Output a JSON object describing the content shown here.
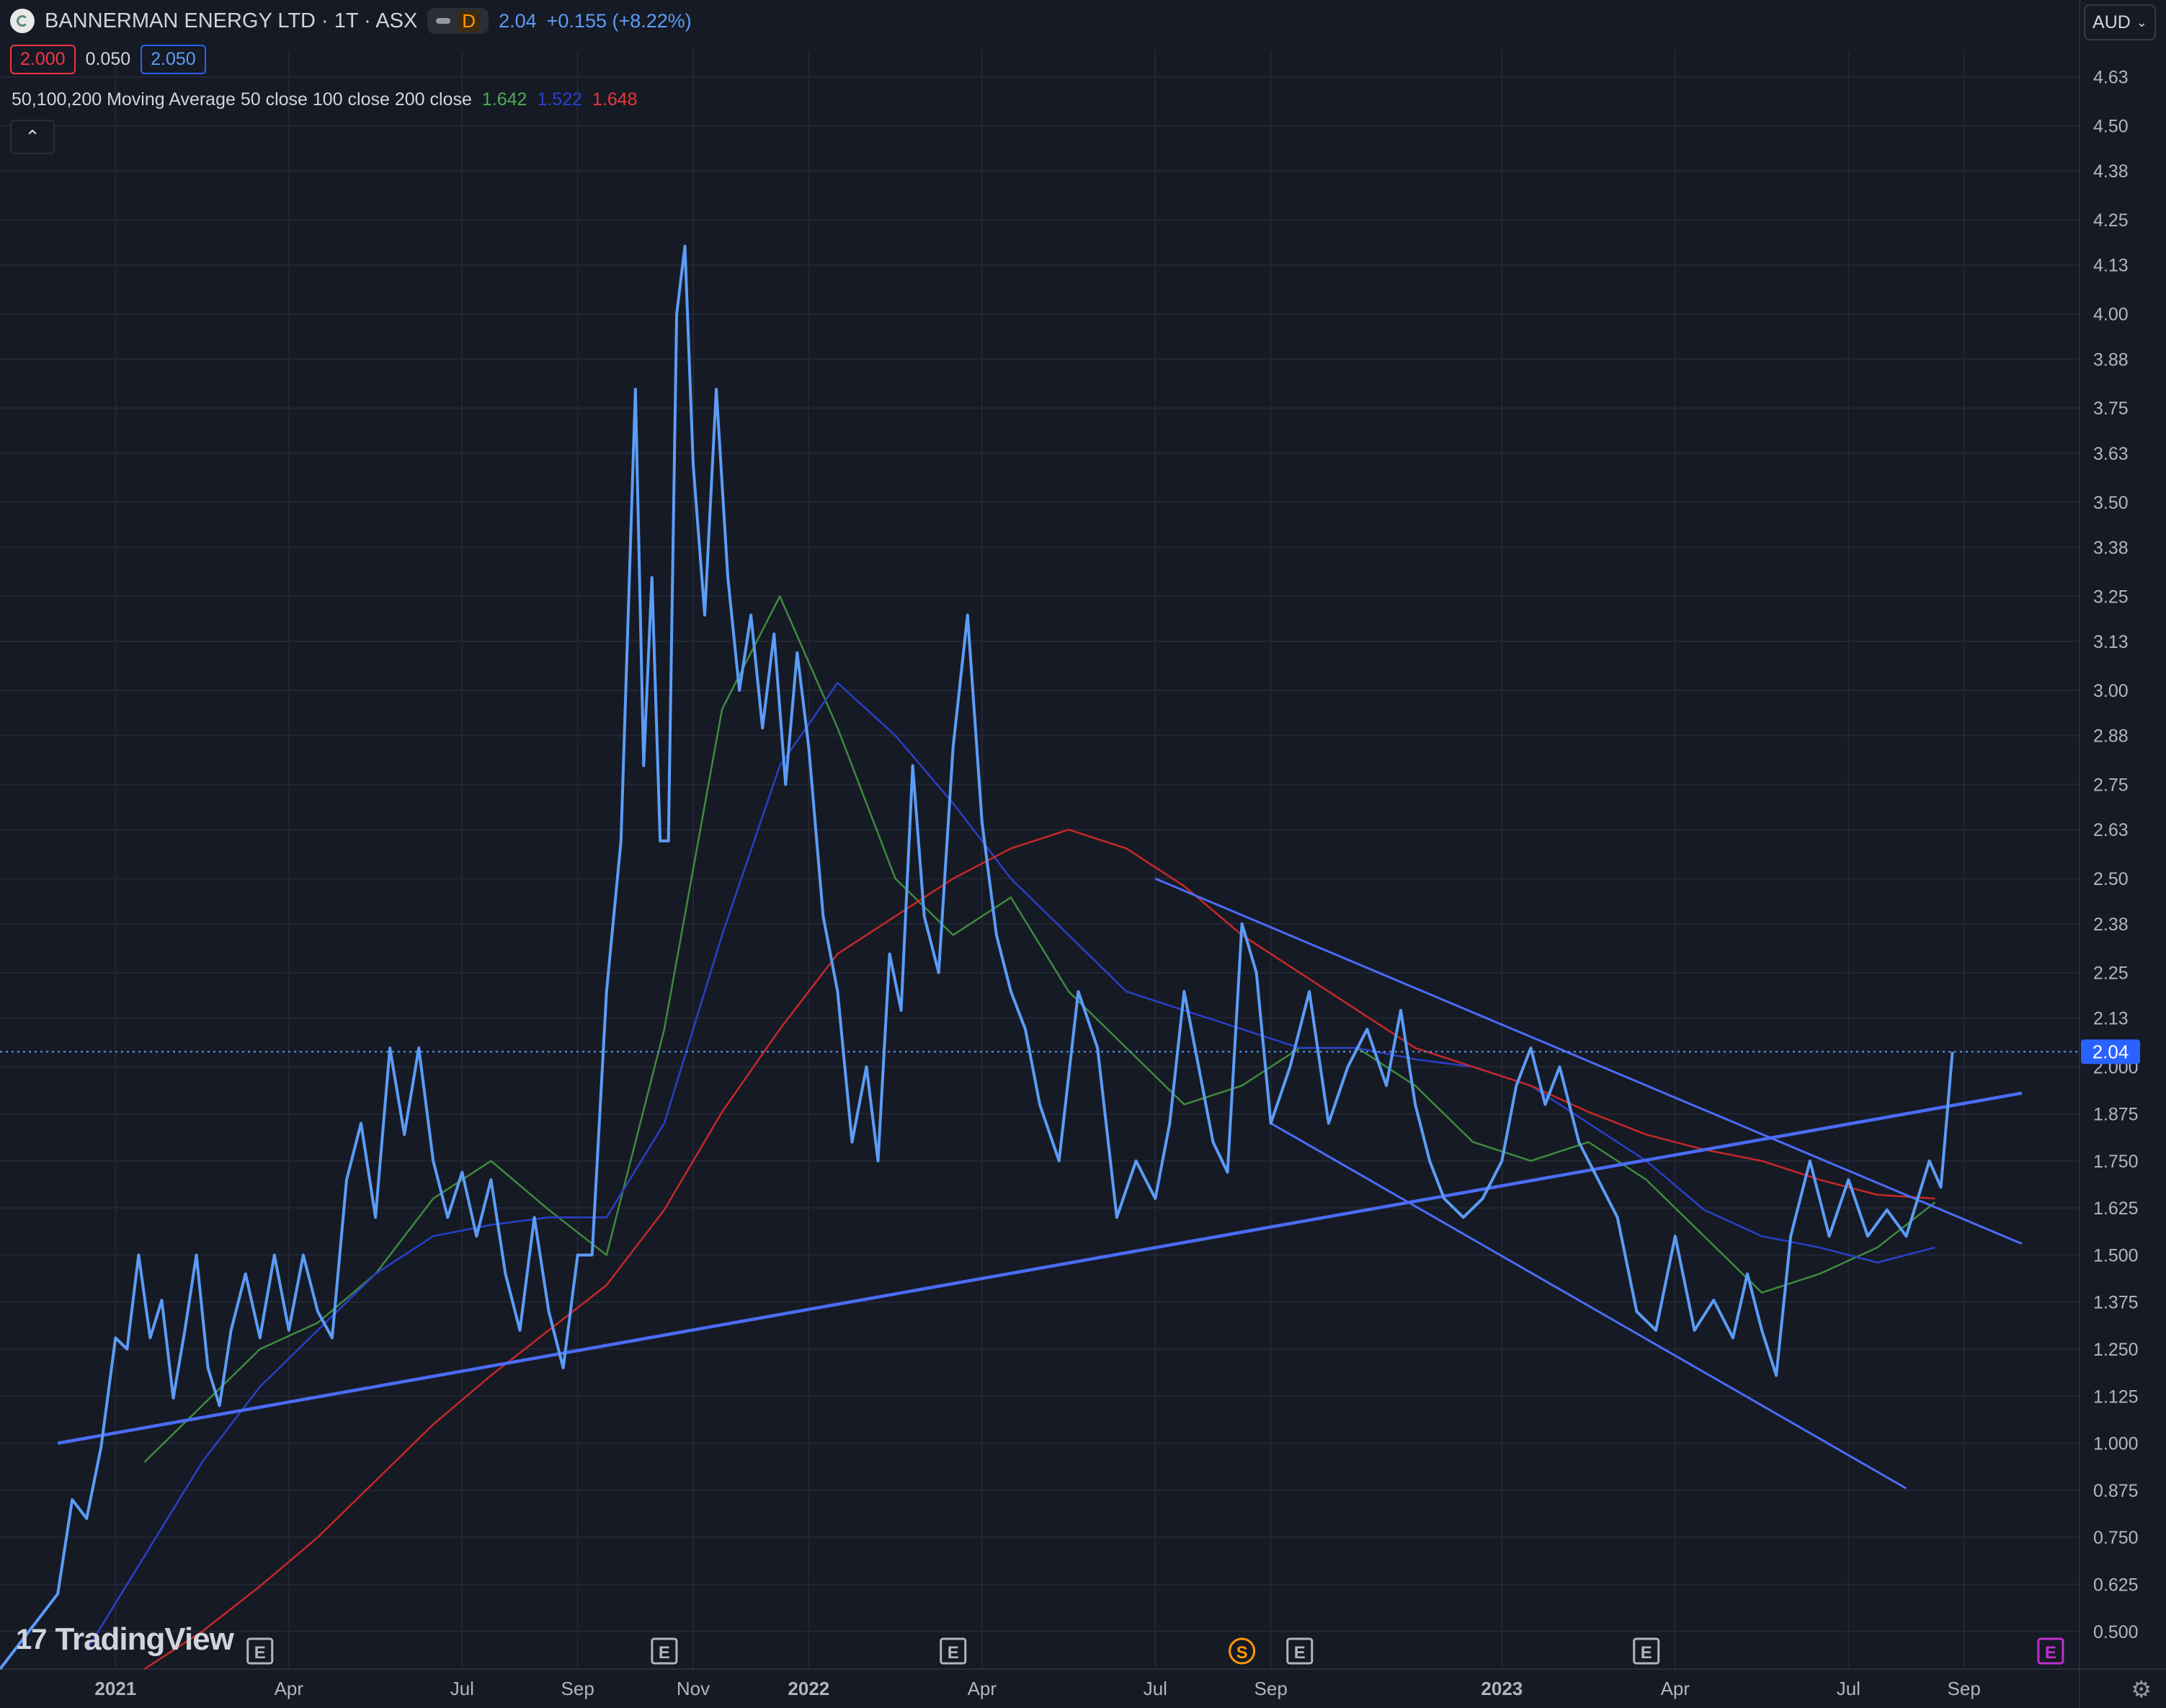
{
  "header": {
    "symbol": "BANNERMAN ENERGY LTD · 1T · ASX",
    "interval_badge": "D",
    "last_price": "2.04",
    "change": "+0.155 (+8.22%)"
  },
  "quote": {
    "bid": "2.000",
    "spread": "0.050",
    "ask": "2.050"
  },
  "ma_legend": {
    "label": "50,100,200 Moving Average 50 close 100 close 200 close",
    "ma50": "1.642",
    "ma100": "1.522",
    "ma200": "1.648"
  },
  "currency": "AUD",
  "brand": "TradingView",
  "colors": {
    "background": "#161a25",
    "grid": "#232733",
    "price_line": "#5b9cf6",
    "ma50": "#3d8b3d",
    "ma100": "#2940c9",
    "ma200": "#c62828",
    "trendline": "#4a6cf7",
    "axis_text": "#b2b5be",
    "current_price_bg": "#2962ff"
  },
  "chart_data": {
    "type": "line",
    "y_axis_ticks": [
      "4.63",
      "4.50",
      "4.38",
      "4.25",
      "4.13",
      "4.00",
      "3.88",
      "3.75",
      "3.63",
      "3.50",
      "3.38",
      "3.25",
      "3.13",
      "3.00",
      "2.88",
      "2.75",
      "2.63",
      "2.50",
      "2.38",
      "2.25",
      "2.13",
      "2.000",
      "1.875",
      "1.750",
      "1.625",
      "1.500",
      "1.375",
      "1.250",
      "1.125",
      "1.000",
      "0.875",
      "0.750",
      "0.625",
      "0.500"
    ],
    "x_axis_labels": [
      {
        "label": "2021",
        "bold": true,
        "date": "2021-01"
      },
      {
        "label": "Apr",
        "bold": false,
        "date": "2021-04"
      },
      {
        "label": "Jul",
        "bold": false,
        "date": "2021-07"
      },
      {
        "label": "Sep",
        "bold": false,
        "date": "2021-09"
      },
      {
        "label": "Nov",
        "bold": false,
        "date": "2021-11"
      },
      {
        "label": "2022",
        "bold": true,
        "date": "2022-01"
      },
      {
        "label": "Apr",
        "bold": false,
        "date": "2022-04"
      },
      {
        "label": "Jul",
        "bold": false,
        "date": "2022-07"
      },
      {
        "label": "Sep",
        "bold": false,
        "date": "2022-09"
      },
      {
        "label": "2023",
        "bold": true,
        "date": "2023-01"
      },
      {
        "label": "Apr",
        "bold": false,
        "date": "2023-04"
      },
      {
        "label": "Jul",
        "bold": false,
        "date": "2023-07"
      },
      {
        "label": "Sep",
        "bold": false,
        "date": "2023-09"
      }
    ],
    "ylim": [
      0.4,
      4.7
    ],
    "xlim": [
      "2020-11",
      "2023-11"
    ],
    "current_price": "2.04",
    "current_price_value": 2.04,
    "event_markers": [
      {
        "label": "E",
        "date": "2021-03",
        "color": "#b2b5be"
      },
      {
        "label": "E",
        "date": "2021-10",
        "color": "#b2b5be"
      },
      {
        "label": "E",
        "date": "2022-03",
        "color": "#b2b5be"
      },
      {
        "label": "S",
        "date": "2022-08",
        "color": "#ff9800"
      },
      {
        "label": "E",
        "date": "2022-09",
        "color": "#b2b5be"
      },
      {
        "label": "E",
        "date": "2023-03",
        "color": "#b2b5be"
      },
      {
        "label": "E",
        "date": "2023-10",
        "color": "#c030d0"
      }
    ],
    "series": [
      {
        "key": "price",
        "points": [
          [
            "2020-11",
            0.4
          ],
          [
            "2020-11",
            0.5
          ],
          [
            "2020-12",
            0.6
          ],
          [
            "2020-12",
            0.85
          ],
          [
            "2020-12",
            0.8
          ],
          [
            "2020-12",
            0.99
          ],
          [
            "2021-01",
            1.28
          ],
          [
            "2021-01",
            1.25
          ],
          [
            "2021-01",
            1.5
          ],
          [
            "2021-01",
            1.28
          ],
          [
            "2021-01",
            1.38
          ],
          [
            "2021-02",
            1.12
          ],
          [
            "2021-02",
            1.3
          ],
          [
            "2021-02",
            1.5
          ],
          [
            "2021-02",
            1.2
          ],
          [
            "2021-02",
            1.1
          ],
          [
            "2021-03",
            1.3
          ],
          [
            "2021-03",
            1.45
          ],
          [
            "2021-03",
            1.28
          ],
          [
            "2021-03",
            1.5
          ],
          [
            "2021-04",
            1.3
          ],
          [
            "2021-04",
            1.5
          ],
          [
            "2021-04",
            1.35
          ],
          [
            "2021-04",
            1.28
          ],
          [
            "2021-05",
            1.7
          ],
          [
            "2021-05",
            1.85
          ],
          [
            "2021-05",
            1.6
          ],
          [
            "2021-05",
            2.05
          ],
          [
            "2021-06",
            1.82
          ],
          [
            "2021-06",
            2.05
          ],
          [
            "2021-06",
            1.75
          ],
          [
            "2021-06",
            1.6
          ],
          [
            "2021-07",
            1.72
          ],
          [
            "2021-07",
            1.55
          ],
          [
            "2021-07",
            1.7
          ],
          [
            "2021-07",
            1.45
          ],
          [
            "2021-08",
            1.3
          ],
          [
            "2021-08",
            1.6
          ],
          [
            "2021-08",
            1.35
          ],
          [
            "2021-08",
            1.2
          ],
          [
            "2021-09",
            1.5
          ],
          [
            "2021-09",
            1.5
          ],
          [
            "2021-09",
            2.2
          ],
          [
            "2021-09",
            2.6
          ],
          [
            "2021-10",
            3.8
          ],
          [
            "2021-10",
            2.8
          ],
          [
            "2021-10",
            3.3
          ],
          [
            "2021-10",
            2.6
          ],
          [
            "2021-10",
            2.6
          ],
          [
            "2021-10",
            4.0
          ],
          [
            "2021-10",
            4.18
          ],
          [
            "2021-11",
            3.6
          ],
          [
            "2021-11",
            3.2
          ],
          [
            "2021-11",
            3.8
          ],
          [
            "2021-11",
            3.3
          ],
          [
            "2021-11",
            3.0
          ],
          [
            "2021-12",
            3.2
          ],
          [
            "2021-12",
            2.9
          ],
          [
            "2021-12",
            3.15
          ],
          [
            "2021-12",
            2.75
          ],
          [
            "2021-12",
            3.1
          ],
          [
            "2022-01",
            2.85
          ],
          [
            "2022-01",
            2.4
          ],
          [
            "2022-01",
            2.2
          ],
          [
            "2022-01",
            1.8
          ],
          [
            "2022-02",
            2.0
          ],
          [
            "2022-02",
            1.75
          ],
          [
            "2022-02",
            2.3
          ],
          [
            "2022-02",
            2.15
          ],
          [
            "2022-02",
            2.8
          ],
          [
            "2022-03",
            2.4
          ],
          [
            "2022-03",
            2.25
          ],
          [
            "2022-03",
            2.85
          ],
          [
            "2022-03",
            3.2
          ],
          [
            "2022-04",
            2.65
          ],
          [
            "2022-04",
            2.35
          ],
          [
            "2022-04",
            2.2
          ],
          [
            "2022-04",
            2.1
          ],
          [
            "2022-05",
            1.9
          ],
          [
            "2022-05",
            1.75
          ],
          [
            "2022-05",
            2.2
          ],
          [
            "2022-06",
            2.05
          ],
          [
            "2022-06",
            1.6
          ],
          [
            "2022-06",
            1.75
          ],
          [
            "2022-07",
            1.65
          ],
          [
            "2022-07",
            1.85
          ],
          [
            "2022-07",
            2.2
          ],
          [
            "2022-07",
            2.0
          ],
          [
            "2022-08",
            1.8
          ],
          [
            "2022-08",
            1.72
          ],
          [
            "2022-08",
            2.38
          ],
          [
            "2022-08",
            2.25
          ],
          [
            "2022-09",
            1.85
          ],
          [
            "2022-09",
            2.0
          ],
          [
            "2022-09",
            2.2
          ],
          [
            "2022-10",
            1.85
          ],
          [
            "2022-10",
            2.0
          ],
          [
            "2022-10",
            2.1
          ],
          [
            "2022-11",
            1.95
          ],
          [
            "2022-11",
            2.15
          ],
          [
            "2022-11",
            1.9
          ],
          [
            "2022-11",
            1.75
          ],
          [
            "2022-12",
            1.65
          ],
          [
            "2022-12",
            1.6
          ],
          [
            "2022-12",
            1.65
          ],
          [
            "2023-01",
            1.75
          ],
          [
            "2023-01",
            1.95
          ],
          [
            "2023-01",
            2.05
          ],
          [
            "2023-01",
            1.9
          ],
          [
            "2023-02",
            2.0
          ],
          [
            "2023-02",
            1.8
          ],
          [
            "2023-02",
            1.7
          ],
          [
            "2023-03",
            1.6
          ],
          [
            "2023-03",
            1.35
          ],
          [
            "2023-03",
            1.3
          ],
          [
            "2023-04",
            1.55
          ],
          [
            "2023-04",
            1.3
          ],
          [
            "2023-04",
            1.38
          ],
          [
            "2023-05",
            1.28
          ],
          [
            "2023-05",
            1.45
          ],
          [
            "2023-05",
            1.3
          ],
          [
            "2023-05",
            1.18
          ],
          [
            "2023-06",
            1.55
          ],
          [
            "2023-06",
            1.75
          ],
          [
            "2023-06",
            1.55
          ],
          [
            "2023-07",
            1.7
          ],
          [
            "2023-07",
            1.55
          ],
          [
            "2023-07",
            1.62
          ],
          [
            "2023-08",
            1.55
          ],
          [
            "2023-08",
            1.65
          ],
          [
            "2023-08",
            1.75
          ],
          [
            "2023-08",
            1.68
          ],
          [
            "2023-08",
            2.04
          ]
        ]
      },
      {
        "key": "ma50",
        "points": [
          [
            "2021-01",
            0.95
          ],
          [
            "2021-02",
            1.1
          ],
          [
            "2021-03",
            1.25
          ],
          [
            "2021-04",
            1.32
          ],
          [
            "2021-05",
            1.45
          ],
          [
            "2021-06",
            1.65
          ],
          [
            "2021-07",
            1.75
          ],
          [
            "2021-08",
            1.62
          ],
          [
            "2021-09",
            1.5
          ],
          [
            "2021-10",
            2.1
          ],
          [
            "2021-11",
            2.95
          ],
          [
            "2021-12",
            3.25
          ],
          [
            "2022-01",
            2.9
          ],
          [
            "2022-02",
            2.5
          ],
          [
            "2022-03",
            2.35
          ],
          [
            "2022-04",
            2.45
          ],
          [
            "2022-05",
            2.2
          ],
          [
            "2022-06",
            2.05
          ],
          [
            "2022-07",
            1.9
          ],
          [
            "2022-08",
            1.95
          ],
          [
            "2022-09",
            2.05
          ],
          [
            "2022-10",
            2.05
          ],
          [
            "2022-11",
            1.95
          ],
          [
            "2022-12",
            1.8
          ],
          [
            "2023-01",
            1.75
          ],
          [
            "2023-02",
            1.8
          ],
          [
            "2023-03",
            1.7
          ],
          [
            "2023-04",
            1.55
          ],
          [
            "2023-05",
            1.4
          ],
          [
            "2023-06",
            1.45
          ],
          [
            "2023-07",
            1.52
          ],
          [
            "2023-08",
            1.64
          ]
        ]
      },
      {
        "key": "ma100",
        "points": [
          [
            "2020-12",
            0.45
          ],
          [
            "2021-01",
            0.7
          ],
          [
            "2021-02",
            0.95
          ],
          [
            "2021-03",
            1.15
          ],
          [
            "2021-04",
            1.3
          ],
          [
            "2021-05",
            1.45
          ],
          [
            "2021-06",
            1.55
          ],
          [
            "2021-07",
            1.58
          ],
          [
            "2021-08",
            1.6
          ],
          [
            "2021-09",
            1.6
          ],
          [
            "2021-10",
            1.85
          ],
          [
            "2021-11",
            2.35
          ],
          [
            "2021-12",
            2.8
          ],
          [
            "2022-01",
            3.02
          ],
          [
            "2022-02",
            2.88
          ],
          [
            "2022-03",
            2.7
          ],
          [
            "2022-04",
            2.5
          ],
          [
            "2022-05",
            2.35
          ],
          [
            "2022-06",
            2.2
          ],
          [
            "2022-07",
            2.15
          ],
          [
            "2022-08",
            2.1
          ],
          [
            "2022-09",
            2.05
          ],
          [
            "2022-10",
            2.05
          ],
          [
            "2022-11",
            2.02
          ],
          [
            "2022-12",
            2.0
          ],
          [
            "2023-01",
            1.95
          ],
          [
            "2023-02",
            1.85
          ],
          [
            "2023-03",
            1.75
          ],
          [
            "2023-04",
            1.62
          ],
          [
            "2023-05",
            1.55
          ],
          [
            "2023-06",
            1.52
          ],
          [
            "2023-07",
            1.48
          ],
          [
            "2023-08",
            1.52
          ]
        ]
      },
      {
        "key": "ma200",
        "points": [
          [
            "2021-01",
            0.4
          ],
          [
            "2021-02",
            0.5
          ],
          [
            "2021-03",
            0.62
          ],
          [
            "2021-04",
            0.75
          ],
          [
            "2021-05",
            0.9
          ],
          [
            "2021-06",
            1.05
          ],
          [
            "2021-07",
            1.18
          ],
          [
            "2021-08",
            1.3
          ],
          [
            "2021-09",
            1.42
          ],
          [
            "2021-10",
            1.62
          ],
          [
            "2021-11",
            1.88
          ],
          [
            "2021-12",
            2.1
          ],
          [
            "2022-01",
            2.3
          ],
          [
            "2022-02",
            2.4
          ],
          [
            "2022-03",
            2.5
          ],
          [
            "2022-04",
            2.58
          ],
          [
            "2022-05",
            2.63
          ],
          [
            "2022-06",
            2.58
          ],
          [
            "2022-07",
            2.48
          ],
          [
            "2022-08",
            2.35
          ],
          [
            "2022-09",
            2.25
          ],
          [
            "2022-10",
            2.15
          ],
          [
            "2022-11",
            2.05
          ],
          [
            "2022-12",
            2.0
          ],
          [
            "2023-01",
            1.95
          ],
          [
            "2023-02",
            1.88
          ],
          [
            "2023-03",
            1.82
          ],
          [
            "2023-04",
            1.78
          ],
          [
            "2023-05",
            1.75
          ],
          [
            "2023-06",
            1.7
          ],
          [
            "2023-07",
            1.66
          ],
          [
            "2023-08",
            1.65
          ]
        ]
      }
    ],
    "trendlines": [
      {
        "name": "support",
        "from": [
          "2020-12",
          1.0
        ],
        "to": [
          "2023-10",
          1.93
        ],
        "width": 3
      },
      {
        "name": "channel-upper",
        "from": [
          "2022-07",
          2.5
        ],
        "to": [
          "2023-10",
          1.53
        ],
        "width": 2
      },
      {
        "name": "channel-lower",
        "from": [
          "2022-09",
          1.85
        ],
        "to": [
          "2023-08",
          0.88
        ],
        "width": 2
      }
    ]
  }
}
